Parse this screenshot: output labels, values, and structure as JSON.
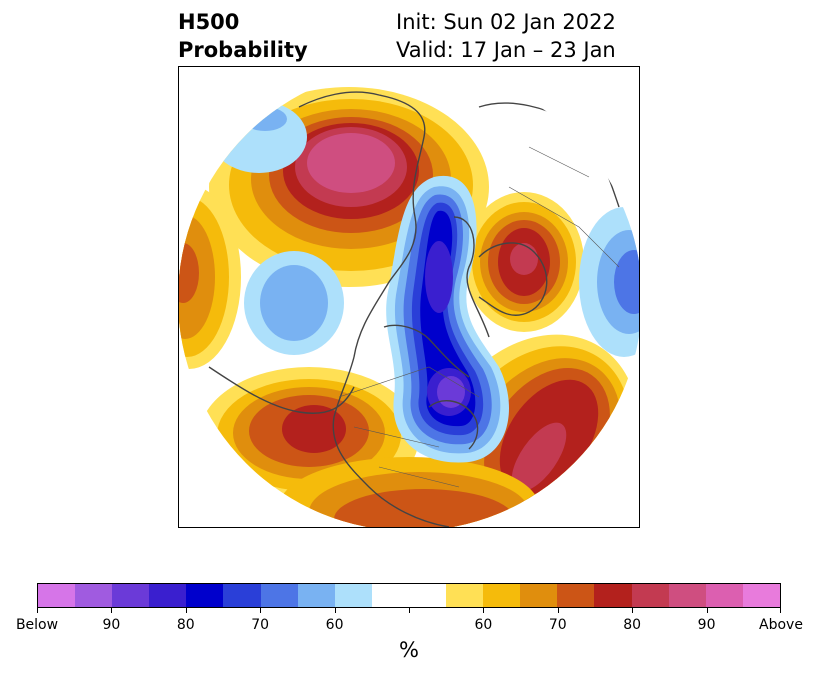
{
  "title": {
    "left_line1": "H500",
    "left_line2": "Probability",
    "right_line1": "Init: Sun 02 Jan 2022",
    "right_line2": "Valid: 17 Jan – 23 Jan"
  },
  "colorbar": {
    "unit": "%",
    "colors": [
      "#d675e8",
      "#a05be0",
      "#6b3ad8",
      "#3a1fcf",
      "#0000cc",
      "#2a3fd8",
      "#4d75e6",
      "#79b2f2",
      "#ade0fb",
      "#ffffff",
      "#ffffff",
      "#ffe055",
      "#f5bb0b",
      "#e08e0d",
      "#cc5516",
      "#b3211d",
      "#c33a51",
      "#cf4e80",
      "#dc5fb0",
      "#e87bdc"
    ],
    "tick_labels": [
      "Below",
      "90",
      "80",
      "70",
      "60",
      "",
      "60",
      "70",
      "80",
      "90",
      "Above"
    ]
  },
  "map": {
    "projection": "north-polar-stereographic",
    "below_color": "#0000cc",
    "above_color": "#b3211d"
  }
}
